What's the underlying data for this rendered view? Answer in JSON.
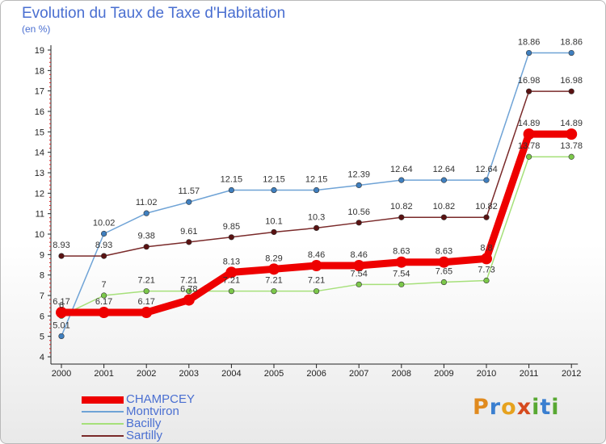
{
  "chart_data": {
    "type": "line",
    "title": "Evolution du Taux de Taxe d'Habitation",
    "subtitle": "(en %)",
    "categories": [
      "2000",
      "2001",
      "2002",
      "2003",
      "2004",
      "2005",
      "2006",
      "2007",
      "2008",
      "2009",
      "2010",
      "2011",
      "2012"
    ],
    "ylim": [
      4,
      19
    ],
    "yticks": [
      "4",
      "5",
      "6",
      "7",
      "8",
      "9",
      "10",
      "11",
      "12",
      "13",
      "14",
      "15",
      "16",
      "17",
      "18",
      "19"
    ],
    "series": [
      {
        "name": "Montviron",
        "color": "#6fa3d6",
        "marker": "#3f7fbf",
        "thick": false,
        "values": [
          5.01,
          10.02,
          11.02,
          11.57,
          12.15,
          12.15,
          12.15,
          12.39,
          12.64,
          12.64,
          12.64,
          18.86,
          18.86
        ],
        "labels": [
          "5.01",
          "10.02",
          "11.02",
          "11.57",
          "12.15",
          "12.15",
          "12.15",
          "12.39",
          "12.64",
          "12.64",
          "12.64",
          "18.86",
          "18.86"
        ]
      },
      {
        "name": "Sartilly",
        "color": "#7a2a2a",
        "marker": "#5a1212",
        "thick": false,
        "values": [
          8.93,
          8.93,
          9.38,
          9.61,
          9.85,
          10.1,
          10.3,
          10.56,
          10.82,
          10.82,
          10.82,
          16.98,
          16.98
        ],
        "labels": [
          "8.93",
          "8.93",
          "9.38",
          "9.61",
          "9.85",
          "10.1",
          "10.3",
          "10.56",
          "10.82",
          "10.82",
          "10.82",
          "16.98",
          "16.98"
        ]
      },
      {
        "name": "Bacilly",
        "color": "#a6e07a",
        "marker": "#7cc84a",
        "thick": false,
        "values": [
          6,
          7,
          7.21,
          7.21,
          7.21,
          7.21,
          7.21,
          7.54,
          7.54,
          7.65,
          7.73,
          13.78,
          13.78
        ],
        "labels": [
          "6",
          "7",
          "7.21",
          "7.21",
          "7.21",
          "7.21",
          "7.21",
          "7.54",
          "7.54",
          "7.65",
          "7.73",
          "13.78",
          "13.78"
        ]
      },
      {
        "name": "CHAMPCEY",
        "color": "#ee0000",
        "marker": "#ee0000",
        "thick": true,
        "values": [
          6.17,
          6.17,
          6.17,
          6.78,
          8.13,
          8.29,
          8.46,
          8.46,
          8.63,
          8.63,
          8.8,
          14.89,
          14.89
        ],
        "labels": [
          "6.17",
          "6.17",
          "6.17",
          "6.78",
          "8.13",
          "8.29",
          "8.46",
          "8.46",
          "8.63",
          "8.63",
          "8.8",
          "14.89",
          "14.89"
        ]
      }
    ],
    "legend": [
      "CHAMPCEY",
      "Montviron",
      "Bacilly",
      "Sartilly"
    ],
    "grid": false
  },
  "logo": {
    "letters": [
      "P",
      "r",
      "o",
      "x",
      "i",
      "t",
      "i"
    ],
    "colors": [
      "#e08a1e",
      "#3a7fd0",
      "#e6a21e",
      "#d64a1e",
      "#58a832",
      "#3a7fd0",
      "#58a832"
    ]
  }
}
